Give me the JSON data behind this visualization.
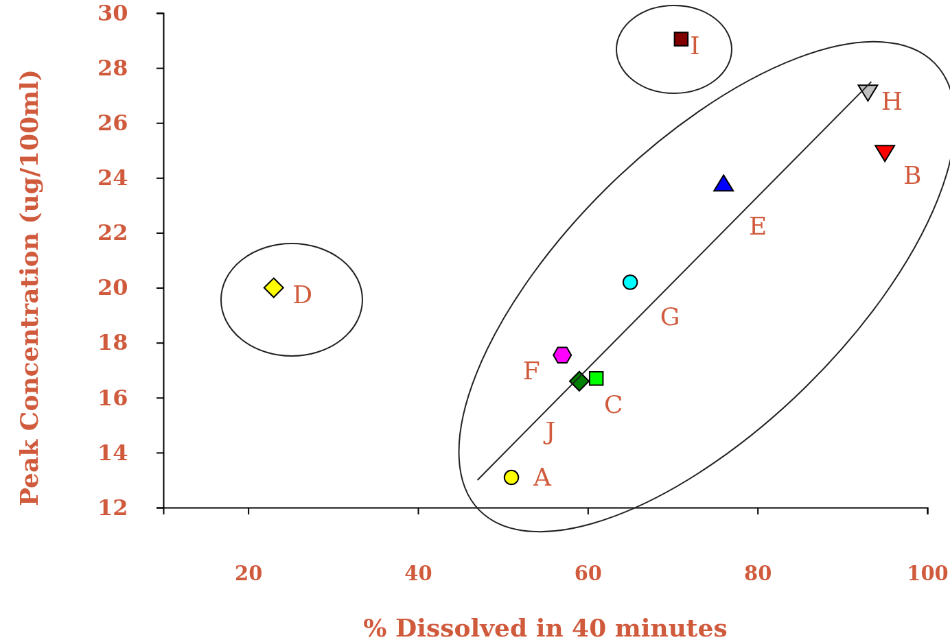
{
  "chart_data": {
    "type": "scatter",
    "xlabel": "% Dissolved in 40 minutes",
    "ylabel": "Peak Concentration (ug/100ml)",
    "xlim": [
      10,
      100
    ],
    "xticks": [
      20,
      40,
      60,
      80,
      100
    ],
    "ylim": [
      12,
      30
    ],
    "yticks": [
      12,
      14,
      16,
      18,
      20,
      22,
      24,
      26,
      28,
      30
    ],
    "grid": false,
    "series": [
      {
        "name": "A",
        "color": "#ffff00",
        "marker": "circle",
        "x": [
          51
        ],
        "values": [
          13.1
        ]
      },
      {
        "name": "B",
        "color": "#ff0000",
        "marker": "triangle-down",
        "x": [
          95
        ],
        "values": [
          24.9
        ]
      },
      {
        "name": "C",
        "color": "#00ff00",
        "marker": "square",
        "x": [
          61
        ],
        "values": [
          16.7
        ]
      },
      {
        "name": "D",
        "color": "#ffff00",
        "marker": "diamond",
        "x": [
          23
        ],
        "values": [
          20
        ]
      },
      {
        "name": "E",
        "color": "#0000ff",
        "marker": "triangle",
        "x": [
          76
        ],
        "values": [
          23.8
        ]
      },
      {
        "name": "F",
        "color": "#ff00ff",
        "x": [
          57
        ],
        "values": [
          17.55
        ]
      },
      {
        "name": "G",
        "color": "#00ffff",
        "marker": "circle",
        "x": [
          65
        ],
        "values": [
          20.2
        ]
      },
      {
        "name": "H",
        "color": "#c0c0c0",
        "marker": "triangle-down",
        "x": [
          93
        ],
        "values": [
          27.1
        ]
      },
      {
        "name": "I",
        "color": "#800000",
        "marker": "square",
        "x": [
          71
        ],
        "values": [
          29.05
        ]
      },
      {
        "name": "J",
        "color": "#008000",
        "marker": "diamond",
        "x": [
          59
        ],
        "values": [
          16.6
        ]
      },
      {
        "type": "line",
        "color": "#222222",
        "x": [
          47,
          93.4
        ],
        "values": [
          13,
          27.5
        ]
      }
    ]
  }
}
